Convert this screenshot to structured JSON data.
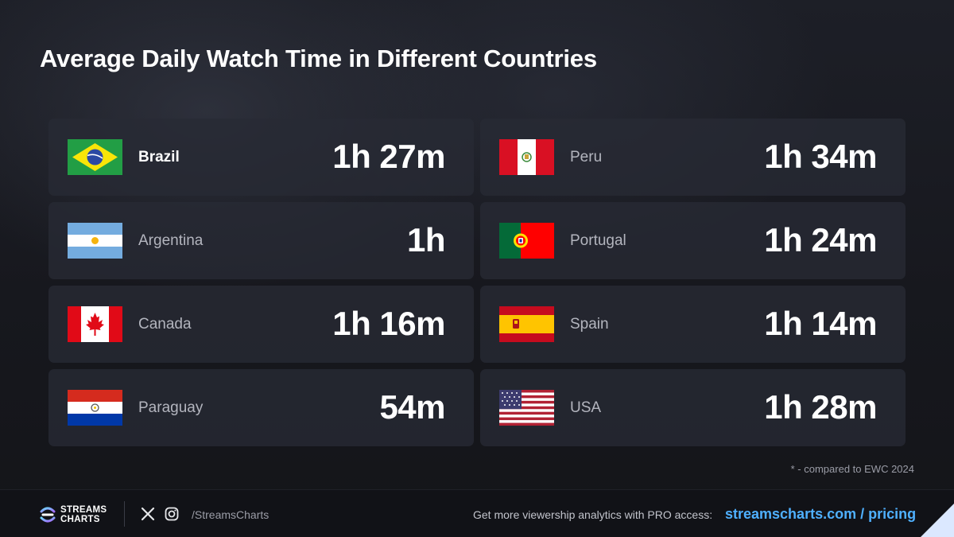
{
  "title": "Average Daily Watch Time in Different Countries",
  "countries": [
    {
      "name": "Brazil",
      "time": "1h 27m",
      "flag": "brazil-flag-icon",
      "highlighted": true
    },
    {
      "name": "Peru",
      "time": "1h 34m",
      "flag": "peru-flag-icon"
    },
    {
      "name": "Argentina",
      "time": "1h",
      "flag": "argentina-flag-icon"
    },
    {
      "name": "Portugal",
      "time": "1h 24m",
      "flag": "portugal-flag-icon"
    },
    {
      "name": "Canada",
      "time": "1h 16m",
      "flag": "canada-flag-icon"
    },
    {
      "name": "Spain",
      "time": "1h 14m",
      "flag": "spain-flag-icon"
    },
    {
      "name": "Paraguay",
      "time": "54m",
      "flag": "paraguay-flag-icon"
    },
    {
      "name": "USA",
      "time": "1h 28m",
      "flag": "usa-flag-icon"
    }
  ],
  "footnote": "* - compared to EWC 2024",
  "footer": {
    "logo_line1": "STREAMS",
    "logo_line2": "CHARTS",
    "handle": "/StreamsCharts",
    "promo": "Get more viewership analytics with PRO access:",
    "link": "streamscharts.com / pricing",
    "icons": [
      "streamscharts-logo-icon",
      "x-icon",
      "instagram-icon"
    ]
  },
  "colors": {
    "background": "#16171d",
    "card": "#282a34",
    "link": "#4fb0ff",
    "highlight_text": "#ffffff",
    "muted_text": "#b3b5be"
  }
}
